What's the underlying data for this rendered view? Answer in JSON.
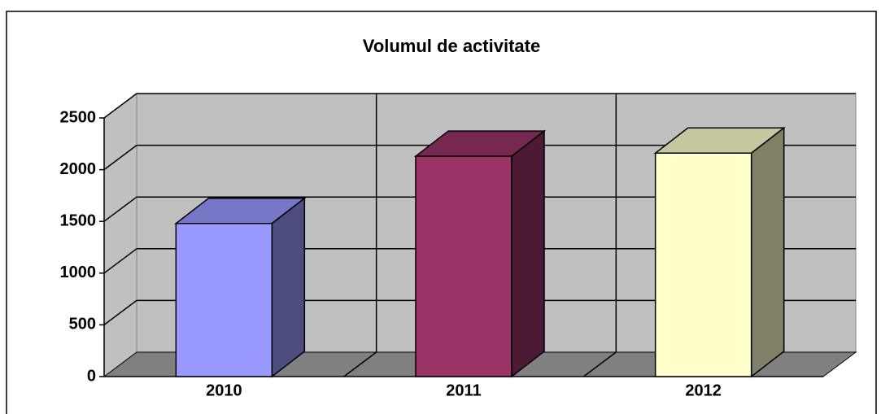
{
  "chart_data": {
    "type": "bar3d",
    "title": "Volumul de activitate",
    "categories": [
      "2010",
      "2011",
      "2012"
    ],
    "values": [
      1480,
      2130,
      2160
    ],
    "colors": [
      "#9999ff",
      "#993366",
      "#ffffcc"
    ],
    "ylim": [
      0,
      2500
    ],
    "yticks": [
      0,
      500,
      1000,
      1500,
      2000,
      2500
    ],
    "grid": true
  }
}
